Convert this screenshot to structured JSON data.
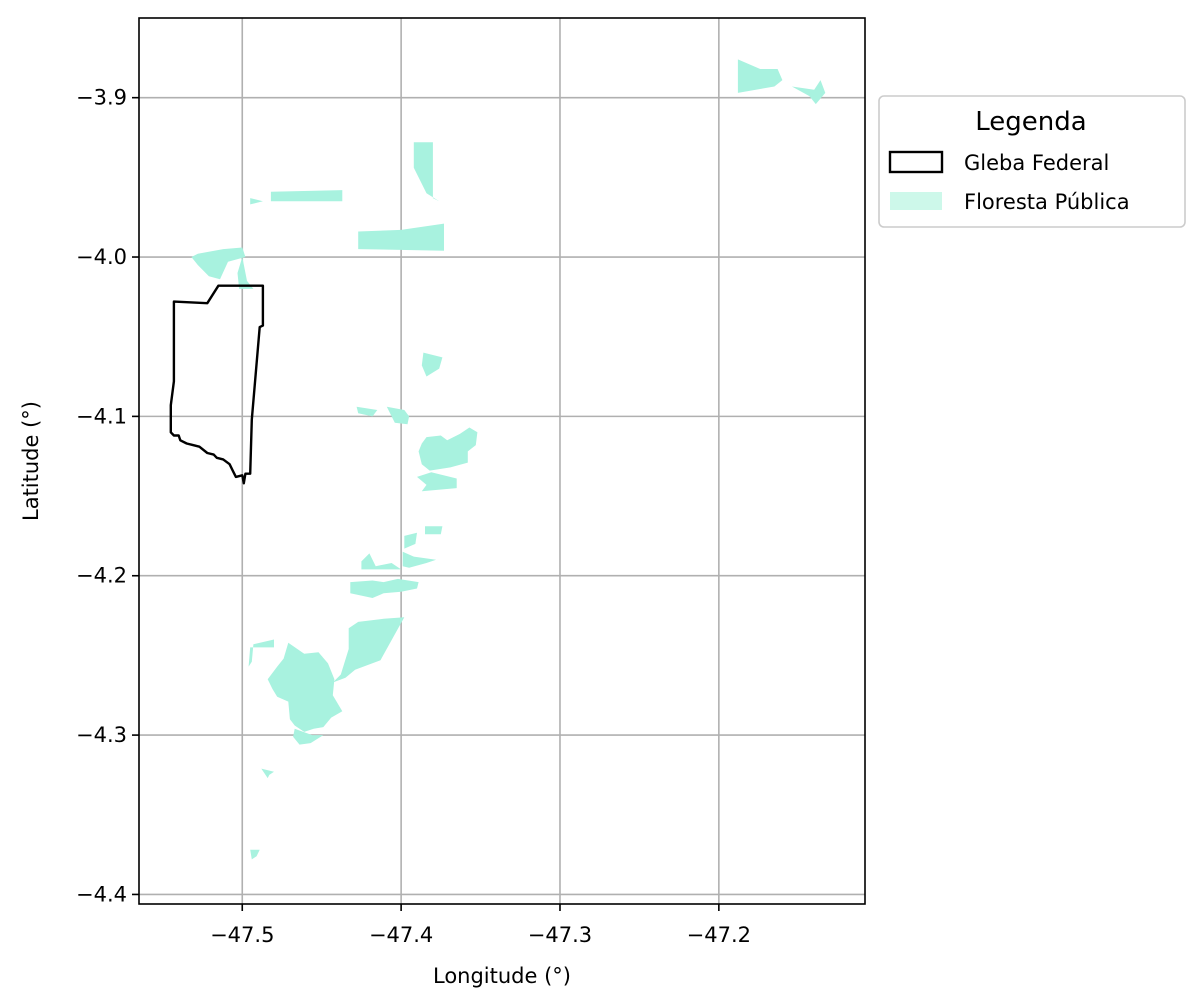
{
  "chart_data": {
    "type": "map",
    "xlabel": "Longitude (°)",
    "ylabel": "Latitude (°)",
    "xlim": [
      -47.565,
      -47.108
    ],
    "ylim": [
      -4.406,
      -3.85
    ],
    "xticks": [
      -47.5,
      -47.4,
      -47.3,
      -47.2
    ],
    "yticks": [
      -3.9,
      -4.0,
      -4.1,
      -4.2,
      -4.3,
      -4.4
    ],
    "xtick_labels": [
      "−47.5",
      "−47.4",
      "−47.3",
      "−47.2"
    ],
    "ytick_labels": [
      "−3.9",
      "−4.0",
      "−4.1",
      "−4.2",
      "−4.3",
      "−4.4"
    ],
    "grid": true,
    "legend": {
      "title": "Legenda",
      "placement": "outside-right-top",
      "entries": [
        {
          "label": "Gleba Federal",
          "style": "outline",
          "color": "#000000"
        },
        {
          "label": "Floresta Pública",
          "style": "fill",
          "color": "#a8f2df"
        }
      ]
    },
    "gleba_federal": [
      [
        -47.543,
        -4.028
      ],
      [
        -47.522,
        -4.029
      ],
      [
        -47.515,
        -4.018
      ],
      [
        -47.487,
        -4.018
      ],
      [
        -47.487,
        -4.043
      ],
      [
        -47.489,
        -4.044
      ],
      [
        -47.494,
        -4.102
      ],
      [
        -47.495,
        -4.136
      ],
      [
        -47.498,
        -4.136
      ],
      [
        -47.499,
        -4.142
      ],
      [
        -47.5,
        -4.137
      ],
      [
        -47.504,
        -4.138
      ],
      [
        -47.506,
        -4.134
      ],
      [
        -47.508,
        -4.13
      ],
      [
        -47.512,
        -4.127
      ],
      [
        -47.516,
        -4.126
      ],
      [
        -47.518,
        -4.124
      ],
      [
        -47.522,
        -4.123
      ],
      [
        -47.527,
        -4.119
      ],
      [
        -47.531,
        -4.118
      ],
      [
        -47.535,
        -4.117
      ],
      [
        -47.539,
        -4.115
      ],
      [
        -47.54,
        -4.112
      ],
      [
        -47.543,
        -4.112
      ],
      [
        -47.545,
        -4.11
      ],
      [
        -47.545,
        -4.093
      ],
      [
        -47.543,
        -4.078
      ],
      [
        -47.543,
        -4.028
      ]
    ],
    "floresta_publica": [
      [
        [
          -47.188,
          -3.876
        ],
        [
          -47.174,
          -3.882
        ],
        [
          -47.163,
          -3.882
        ],
        [
          -47.16,
          -3.889
        ],
        [
          -47.165,
          -3.893
        ],
        [
          -47.188,
          -3.897
        ]
      ],
      [
        [
          -47.154,
          -3.893
        ],
        [
          -47.14,
          -3.895
        ],
        [
          -47.136,
          -3.889
        ],
        [
          -47.133,
          -3.897
        ],
        [
          -47.139,
          -3.904
        ],
        [
          -47.143,
          -3.899
        ]
      ],
      [
        [
          -47.392,
          -3.928
        ],
        [
          -47.38,
          -3.928
        ],
        [
          -47.38,
          -3.963
        ],
        [
          -47.376,
          -3.965
        ],
        [
          -47.384,
          -3.96
        ],
        [
          -47.389,
          -3.95
        ],
        [
          -47.392,
          -3.944
        ]
      ],
      [
        [
          -47.482,
          -3.959
        ],
        [
          -47.437,
          -3.958
        ],
        [
          -47.437,
          -3.965
        ],
        [
          -47.482,
          -3.965
        ]
      ],
      [
        [
          -47.373,
          -3.979
        ],
        [
          -47.373,
          -3.996
        ],
        [
          -47.427,
          -3.995
        ],
        [
          -47.427,
          -3.984
        ],
        [
          -47.4,
          -3.983
        ]
      ],
      [
        [
          -47.495,
          -3.963
        ],
        [
          -47.487,
          -3.965
        ],
        [
          -47.495,
          -3.967
        ],
        [
          -47.495,
          -3.99
        ]
      ],
      [
        [
          -47.512,
          -3.995
        ],
        [
          -47.5,
          -3.994
        ],
        [
          -47.498,
          -4.0
        ],
        [
          -47.509,
          -4.003
        ],
        [
          -47.514,
          -4.014
        ],
        [
          -47.521,
          -4.012
        ],
        [
          -47.528,
          -4.005
        ],
        [
          -47.532,
          -4.0
        ],
        [
          -47.528,
          -3.998
        ]
      ],
      [
        [
          -47.5,
          -4.0
        ],
        [
          -47.497,
          -4.015
        ],
        [
          -47.493,
          -4.02
        ],
        [
          -47.502,
          -4.02
        ],
        [
          -47.503,
          -4.01
        ]
      ],
      [
        [
          -47.386,
          -4.06
        ],
        [
          -47.374,
          -4.063
        ],
        [
          -47.376,
          -4.07
        ],
        [
          -47.384,
          -4.075
        ],
        [
          -47.387,
          -4.068
        ]
      ],
      [
        [
          -47.428,
          -4.094
        ],
        [
          -47.415,
          -4.096
        ],
        [
          -47.418,
          -4.1
        ],
        [
          -47.427,
          -4.098
        ]
      ],
      [
        [
          -47.409,
          -4.094
        ],
        [
          -47.398,
          -4.096
        ],
        [
          -47.395,
          -4.1
        ],
        [
          -47.396,
          -4.105
        ],
        [
          -47.404,
          -4.104
        ]
      ],
      [
        [
          -47.384,
          -4.113
        ],
        [
          -47.375,
          -4.112
        ],
        [
          -47.371,
          -4.115
        ],
        [
          -47.363,
          -4.111
        ],
        [
          -47.357,
          -4.107
        ],
        [
          -47.352,
          -4.11
        ],
        [
          -47.353,
          -4.118
        ],
        [
          -47.358,
          -4.122
        ],
        [
          -47.358,
          -4.129
        ],
        [
          -47.369,
          -4.132
        ],
        [
          -47.382,
          -4.134
        ],
        [
          -47.387,
          -4.13
        ],
        [
          -47.389,
          -4.122
        ],
        [
          -47.387,
          -4.117
        ]
      ],
      [
        [
          -47.39,
          -4.138
        ],
        [
          -47.384,
          -4.143
        ],
        [
          -47.387,
          -4.147
        ],
        [
          -47.365,
          -4.145
        ],
        [
          -47.365,
          -4.139
        ],
        [
          -47.381,
          -4.135
        ]
      ],
      [
        [
          -47.385,
          -4.169
        ],
        [
          -47.374,
          -4.169
        ],
        [
          -47.375,
          -4.174
        ],
        [
          -47.385,
          -4.174
        ]
      ],
      [
        [
          -47.398,
          -4.175
        ],
        [
          -47.39,
          -4.173
        ],
        [
          -47.391,
          -4.18
        ],
        [
          -47.398,
          -4.183
        ]
      ],
      [
        [
          -47.399,
          -4.185
        ],
        [
          -47.392,
          -4.188
        ],
        [
          -47.378,
          -4.19
        ],
        [
          -47.384,
          -4.192
        ],
        [
          -47.395,
          -4.195
        ],
        [
          -47.399,
          -4.194
        ]
      ],
      [
        [
          -47.425,
          -4.191
        ],
        [
          -47.42,
          -4.186
        ],
        [
          -47.416,
          -4.194
        ],
        [
          -47.406,
          -4.192
        ],
        [
          -47.4,
          -4.196
        ],
        [
          -47.425,
          -4.196
        ]
      ],
      [
        [
          -47.432,
          -4.204
        ],
        [
          -47.418,
          -4.203
        ],
        [
          -47.411,
          -4.204
        ],
        [
          -47.402,
          -4.202
        ],
        [
          -47.389,
          -4.204
        ],
        [
          -47.39,
          -4.208
        ],
        [
          -47.4,
          -4.21
        ],
        [
          -47.411,
          -4.211
        ],
        [
          -47.418,
          -4.214
        ],
        [
          -47.432,
          -4.211
        ]
      ],
      [
        [
          -47.398,
          -4.226
        ],
        [
          -47.411,
          -4.227
        ],
        [
          -47.427,
          -4.229
        ],
        [
          -47.433,
          -4.233
        ],
        [
          -47.433,
          -4.246
        ],
        [
          -47.438,
          -4.262
        ],
        [
          -47.443,
          -4.267
        ],
        [
          -47.435,
          -4.264
        ],
        [
          -47.429,
          -4.259
        ],
        [
          -47.413,
          -4.253
        ]
      ],
      [
        [
          -47.495,
          -4.245
        ],
        [
          -47.48,
          -4.245
        ],
        [
          -47.48,
          -4.24
        ],
        [
          -47.493,
          -4.243
        ],
        [
          -47.494,
          -4.254
        ],
        [
          -47.496,
          -4.257
        ]
      ],
      [
        [
          -47.471,
          -4.242
        ],
        [
          -47.461,
          -4.249
        ],
        [
          -47.452,
          -4.248
        ],
        [
          -47.446,
          -4.255
        ],
        [
          -47.442,
          -4.265
        ],
        [
          -47.443,
          -4.275
        ],
        [
          -47.437,
          -4.285
        ],
        [
          -47.444,
          -4.289
        ],
        [
          -47.449,
          -4.295
        ],
        [
          -47.455,
          -4.296
        ],
        [
          -47.461,
          -4.298
        ],
        [
          -47.467,
          -4.294
        ],
        [
          -47.47,
          -4.29
        ],
        [
          -47.471,
          -4.279
        ],
        [
          -47.478,
          -4.276
        ],
        [
          -47.481,
          -4.271
        ],
        [
          -47.484,
          -4.265
        ],
        [
          -47.478,
          -4.257
        ],
        [
          -47.474,
          -4.252
        ]
      ],
      [
        [
          -47.467,
          -4.296
        ],
        [
          -47.456,
          -4.3
        ],
        [
          -47.449,
          -4.3
        ],
        [
          -47.457,
          -4.305
        ],
        [
          -47.464,
          -4.306
        ],
        [
          -47.468,
          -4.301
        ]
      ],
      [
        [
          -47.488,
          -4.321
        ],
        [
          -47.48,
          -4.323
        ],
        [
          -47.483,
          -4.325
        ],
        [
          -47.484,
          -4.327
        ]
      ],
      [
        [
          -47.495,
          -4.372
        ],
        [
          -47.489,
          -4.372
        ],
        [
          -47.491,
          -4.376
        ],
        [
          -47.494,
          -4.378
        ]
      ],
      [
        [
          -47.544,
          -4.153
        ],
        [
          -47.543,
          -4.155
        ]
      ],
      [
        [
          -47.526,
          -4.063
        ],
        [
          -47.525,
          -4.064
        ]
      ]
    ]
  }
}
